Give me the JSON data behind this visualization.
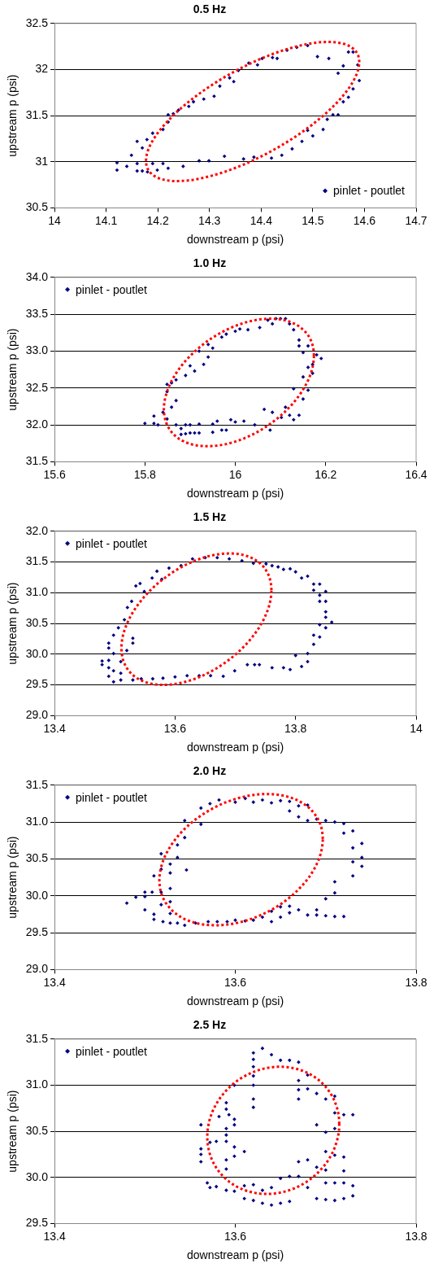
{
  "chart_data": [
    {
      "type": "scatter",
      "title": "0.5 Hz",
      "xlabel": "downstream p (psi)",
      "ylabel": "upstream p (psi)",
      "xlim": [
        14,
        14.7
      ],
      "ylim": [
        30.5,
        32.5
      ],
      "xticks": [
        14,
        14.1,
        14.2,
        14.3,
        14.4,
        14.5,
        14.6,
        14.7
      ],
      "yticks": [
        30.5,
        31,
        31.5,
        32,
        32.5
      ],
      "grid": "y",
      "legend": "bottom right",
      "marker": "diamond",
      "series": [
        {
          "name": "pinlet - poutlet",
          "color": "#000080",
          "x": [
            14.121,
            14.121,
            14.14,
            14.149,
            14.16,
            14.16,
            14.16,
            14.17,
            14.17,
            14.179,
            14.18,
            14.19,
            14.19,
            14.199,
            14.21,
            14.21,
            14.22,
            14.22,
            14.22,
            14.23,
            14.24,
            14.249,
            14.26,
            14.269,
            14.28,
            14.289,
            14.299,
            14.309,
            14.32,
            14.329,
            14.339,
            14.347,
            14.356,
            14.366,
            14.376,
            14.386,
            14.393,
            14.402,
            14.42,
            14.422,
            14.431,
            14.44,
            14.45,
            14.46,
            14.469,
            14.479,
            14.49,
            14.49,
            14.5,
            14.509,
            14.52,
            14.528,
            14.531,
            14.539,
            14.549,
            14.549,
            14.559,
            14.559,
            14.569,
            14.569,
            14.578,
            14.578,
            14.587,
            14.59
          ],
          "values": [
            30.99,
            30.91,
            30.95,
            31.07,
            31.22,
            30.98,
            30.9,
            31.15,
            30.9,
            31.24,
            30.89,
            31.31,
            30.98,
            30.91,
            31.35,
            30.98,
            31.51,
            31.43,
            30.93,
            31.52,
            31.56,
            30.95,
            31.6,
            31.65,
            31.01,
            31.68,
            31.01,
            31.71,
            31.82,
            31.06,
            31.91,
            31.87,
            31.99,
            31.03,
            32.07,
            31.05,
            32.05,
            32.12,
            31.04,
            32.13,
            32.12,
            31.07,
            32.21,
            31.14,
            32.24,
            31.22,
            32.26,
            31.34,
            31.28,
            32.14,
            31.35,
            31.46,
            32.12,
            31.51,
            31.96,
            31.51,
            31.65,
            32.04,
            32.19,
            31.7,
            32.19,
            31.79,
            32.05,
            31.88
          ]
        }
      ]
    },
    {
      "type": "scatter",
      "title": "1.0 Hz",
      "xlabel": "downstream p (psi)",
      "ylabel": "upstream p (psi)",
      "xlim": [
        15.6,
        16.4
      ],
      "ylim": [
        31.5,
        34
      ],
      "xticks": [
        15.6,
        15.8,
        16,
        16.2,
        16.4
      ],
      "yticks": [
        {
          "value": 31.5,
          "label": "31.5"
        },
        {
          "value": 32,
          "label": "32.0"
        },
        {
          "value": 32.5,
          "label": "32.5"
        },
        {
          "value": 33,
          "label": "33.0"
        },
        {
          "value": 33.5,
          "label": "33.5"
        },
        {
          "value": 34,
          "label": "34.0"
        }
      ],
      "grid": "y",
      "legend": "top left",
      "marker": "diamond",
      "series": [
        {
          "name": "pinlet - poutlet",
          "color": "#000080",
          "x": [
            15.8,
            15.82,
            15.82,
            15.829,
            15.84,
            15.849,
            15.849,
            15.849,
            15.859,
            15.859,
            15.869,
            15.869,
            15.869,
            15.88,
            15.88,
            15.89,
            15.89,
            15.89,
            15.9,
            15.9,
            15.9,
            15.91,
            15.91,
            15.92,
            15.92,
            15.92,
            15.93,
            15.94,
            15.94,
            15.95,
            15.95,
            15.95,
            15.96,
            15.97,
            15.97,
            15.98,
            15.98,
            15.99,
            16,
            16,
            16.01,
            16.019,
            16.028,
            16.043,
            16.054,
            16.064,
            16.072,
            16.077,
            16.082,
            16.082,
            16.09,
            16.1,
            16.102,
            16.111,
            16.111,
            16.12,
            16.12,
            16.129,
            16.129,
            16.129,
            16.141,
            16.141,
            16.141,
            16.15,
            16.15,
            16.15,
            16.161,
            16.161,
            16.161,
            16.171,
            16.171,
            16.18,
            16.19
          ],
          "values": [
            32.02,
            32.12,
            32.02,
            32,
            32.17,
            32.55,
            32.45,
            32.08,
            32.57,
            32.24,
            32.61,
            32.33,
            32,
            31.95,
            31.87,
            32.67,
            32,
            31.88,
            32.8,
            32,
            31.89,
            32.73,
            31.89,
            33,
            32.01,
            31.89,
            32.82,
            33.09,
            32.92,
            33.04,
            32.01,
            31.9,
            32.05,
            33.19,
            31.93,
            33.23,
            31.93,
            32.07,
            33.27,
            32.04,
            33.3,
            32.05,
            33.29,
            32,
            33.32,
            32.21,
            33.42,
            31.93,
            32.17,
            33.37,
            33.44,
            33.44,
            32.1,
            33.44,
            32.24,
            33.37,
            32.13,
            33.29,
            32.07,
            32.49,
            33.15,
            33.07,
            32.13,
            32.35,
            32.65,
            32.98,
            32.47,
            32.78,
            33.07,
            32.7,
            32.82,
            32.95,
            32.9
          ]
        }
      ]
    },
    {
      "type": "scatter",
      "title": "1.5 Hz",
      "xlabel": "downstream p (psi)",
      "ylabel": "upstream p (psi)",
      "xlim": [
        13.4,
        14
      ],
      "ylim": [
        29,
        32
      ],
      "xticks": [
        13.4,
        13.6,
        13.8,
        14
      ],
      "yticks": [
        {
          "value": 29,
          "label": "29.0"
        },
        {
          "value": 29.5,
          "label": "29.5"
        },
        {
          "value": 30,
          "label": "30.0"
        },
        {
          "value": 30.5,
          "label": "30.5"
        },
        {
          "value": 31,
          "label": "31.0"
        },
        {
          "value": 31.5,
          "label": "31.5"
        },
        {
          "value": 32,
          "label": "32.0"
        }
      ],
      "grid": "y",
      "legend": "top left",
      "marker": "diamond",
      "series": [
        {
          "name": "pinlet - poutlet",
          "color": "#000080",
          "x": [
            13.479,
            13.479,
            13.49,
            13.49,
            13.49,
            13.49,
            13.49,
            13.498,
            13.498,
            13.498,
            13.498,
            13.506,
            13.51,
            13.51,
            13.51,
            13.516,
            13.52,
            13.521,
            13.528,
            13.53,
            13.53,
            13.53,
            13.535,
            13.542,
            13.544,
            13.549,
            13.562,
            13.563,
            13.57,
            13.578,
            13.58,
            13.59,
            13.6,
            13.61,
            13.62,
            13.629,
            13.64,
            13.65,
            13.659,
            13.67,
            13.68,
            13.69,
            13.699,
            13.711,
            13.72,
            13.73,
            13.732,
            13.74,
            13.751,
            13.761,
            13.761,
            13.771,
            13.78,
            13.78,
            13.791,
            13.791,
            13.8,
            13.8,
            13.81,
            13.81,
            13.82,
            13.82,
            13.82,
            13.83,
            13.83,
            13.83,
            13.83,
            13.84,
            13.84,
            13.84,
            13.84,
            13.84,
            13.85,
            13.85,
            13.85,
            13.85,
            13.85,
            13.86
          ],
          "values": [
            29.89,
            29.83,
            30.18,
            30.1,
            29.9,
            29.78,
            29.64,
            30.31,
            30.01,
            29.73,
            29.55,
            30.43,
            29.88,
            29.69,
            29.58,
            30.56,
            30.06,
            30.76,
            30.86,
            30.26,
            30.18,
            29.58,
            31.11,
            31.15,
            29.6,
            31.02,
            31.24,
            29.6,
            31.35,
            31.22,
            29.61,
            31.4,
            29.63,
            31.44,
            29.65,
            31.55,
            29.65,
            31.57,
            29.65,
            31.57,
            29.64,
            31.55,
            29.73,
            31.52,
            29.83,
            31.48,
            29.83,
            29.83,
            31.47,
            29.78,
            31.44,
            31.42,
            29.78,
            31.38,
            31.39,
            29.75,
            31.34,
            29.98,
            29.8,
            31.24,
            31.27,
            30.01,
            29.88,
            30.31,
            30.16,
            31.14,
            31.04,
            31.14,
            30.96,
            30.86,
            30.48,
            30.28,
            31.02,
            30.86,
            30.69,
            30.6,
            30.43,
            30.52
          ]
        }
      ]
    },
    {
      "type": "scatter",
      "title": "2.0 Hz",
      "xlabel": "downstream p (psi)",
      "ylabel": "upstream p (psi)",
      "xlim": [
        13.4,
        13.8
      ],
      "ylim": [
        29,
        31.5
      ],
      "xticks": [
        13.4,
        13.6,
        13.8
      ],
      "yticks": [
        {
          "value": 29,
          "label": "29.0"
        },
        {
          "value": 29.5,
          "label": "29.5"
        },
        {
          "value": 30,
          "label": "30.0"
        },
        {
          "value": 30.5,
          "label": "30.5"
        },
        {
          "value": 31,
          "label": "31.0"
        },
        {
          "value": 31.5,
          "label": "31.5"
        }
      ],
      "grid": "y",
      "legend": "top left",
      "marker": "diamond",
      "series": [
        {
          "name": "pinlet - poutlet",
          "color": "#000080",
          "x": [
            13.48,
            13.49,
            13.5,
            13.5,
            13.5,
            13.508,
            13.51,
            13.51,
            13.51,
            13.518,
            13.518,
            13.518,
            13.518,
            13.52,
            13.528,
            13.528,
            13.528,
            13.528,
            13.528,
            13.528,
            13.536,
            13.536,
            13.536,
            13.544,
            13.544,
            13.544,
            13.546,
            13.556,
            13.562,
            13.562,
            13.57,
            13.572,
            13.582,
            13.58,
            13.591,
            13.6,
            13.6,
            13.611,
            13.611,
            13.62,
            13.62,
            13.63,
            13.63,
            13.64,
            13.64,
            13.64,
            13.65,
            13.65,
            13.65,
            13.66,
            13.66,
            13.66,
            13.66,
            13.67,
            13.67,
            13.67,
            13.68,
            13.68,
            13.68,
            13.69,
            13.69,
            13.69,
            13.7,
            13.7,
            13.7,
            13.71,
            13.71,
            13.71,
            13.71,
            13.72,
            13.72,
            13.72,
            13.73,
            13.73,
            13.73,
            13.73,
            13.74,
            13.74,
            13.74
          ],
          "values": [
            29.9,
            29.98,
            30.05,
            29.99,
            29.81,
            30.05,
            30.27,
            29.75,
            29.68,
            30.57,
            30.36,
            30.05,
            29.88,
            29.65,
            30.43,
            30.31,
            30.1,
            29.92,
            29.76,
            29.63,
            30.69,
            30.52,
            29.63,
            31.02,
            30.79,
            29.6,
            30.35,
            29.63,
            31.19,
            30.97,
            29.65,
            31.25,
            31.3,
            29.65,
            29.65,
            31.27,
            29.67,
            31.32,
            29.66,
            31.27,
            29.67,
            31.3,
            29.71,
            31.26,
            29.79,
            29.65,
            31.29,
            29.85,
            29.71,
            31.28,
            31.15,
            29.86,
            29.77,
            31.22,
            31.07,
            29.81,
            31.23,
            31.02,
            29.74,
            31.04,
            29.81,
            29.74,
            31.02,
            29.96,
            29.73,
            31,
            30.19,
            30.04,
            29.72,
            30.98,
            30.85,
            29.72,
            30.88,
            30.65,
            30.46,
            30.27,
            30.71,
            30.52,
            30.4
          ]
        }
      ]
    },
    {
      "type": "scatter",
      "title": "2.5 Hz",
      "xlabel": "downstream p (psi)",
      "ylabel": "upstream p (psi)",
      "xlim": [
        13.4,
        13.8
      ],
      "ylim": [
        29.5,
        31.5
      ],
      "xticks": [
        13.4,
        13.6,
        13.8
      ],
      "yticks": [
        {
          "value": 29.5,
          "label": "29.5"
        },
        {
          "value": 30,
          "label": "30.0"
        },
        {
          "value": 30.5,
          "label": "30.5"
        },
        {
          "value": 31,
          "label": "31.0"
        },
        {
          "value": 31.5,
          "label": "31.5"
        }
      ],
      "grid": "y",
      "legend": "top left",
      "marker": "diamond",
      "series": [
        {
          "name": "pinlet - poutlet",
          "color": "#000080",
          "x": [
            13.562,
            13.562,
            13.562,
            13.562,
            13.569,
            13.572,
            13.572,
            13.579,
            13.579,
            13.582,
            13.59,
            13.59,
            13.59,
            13.59,
            13.59,
            13.59,
            13.59,
            13.59,
            13.593,
            13.599,
            13.599,
            13.599,
            13.599,
            13.599,
            13.599,
            13.61,
            13.61,
            13.61,
            13.62,
            13.62,
            13.62,
            13.62,
            13.62,
            13.62,
            13.62,
            13.62,
            13.62,
            13.63,
            13.63,
            13.63,
            13.64,
            13.64,
            13.64,
            13.65,
            13.65,
            13.65,
            13.66,
            13.66,
            13.66,
            13.67,
            13.67,
            13.67,
            13.67,
            13.67,
            13.67,
            13.68,
            13.68,
            13.68,
            13.68,
            13.69,
            13.69,
            13.69,
            13.69,
            13.7,
            13.7,
            13.7,
            13.7,
            13.7,
            13.7,
            13.71,
            13.71,
            13.71,
            13.71,
            13.71,
            13.71,
            13.72,
            13.72,
            13.72,
            13.72,
            13.72,
            13.73,
            13.73,
            13.73
          ],
          "values": [
            30.57,
            30.31,
            30.25,
            30.17,
            29.94,
            29.89,
            30.38,
            30.39,
            29.9,
            30.66,
            30.81,
            30.74,
            30.53,
            30.46,
            30.39,
            30.19,
            30.09,
            29.86,
            30.68,
            31,
            30.63,
            30.57,
            30.33,
            30.23,
            29.85,
            30.28,
            29.91,
            29.77,
            31.35,
            31.28,
            31.2,
            31.1,
            31,
            30.85,
            30.76,
            29.92,
            29.75,
            31.4,
            29.86,
            29.72,
            31.33,
            29.89,
            29.7,
            31.27,
            29.99,
            29.72,
            31.27,
            30.01,
            29.74,
            31.25,
            31.05,
            30.95,
            30.85,
            30.17,
            30.01,
            31.11,
            30.96,
            30.19,
            29.89,
            30.91,
            30.57,
            30.11,
            29.77,
            30.85,
            30.49,
            30.28,
            30.08,
            29.94,
            29.76,
            30.88,
            30.7,
            30.53,
            30.24,
            29.94,
            29.75,
            30.68,
            30.22,
            30.07,
            29.94,
            29.77,
            30.68,
            29.91,
            29.8
          ]
        }
      ]
    }
  ]
}
